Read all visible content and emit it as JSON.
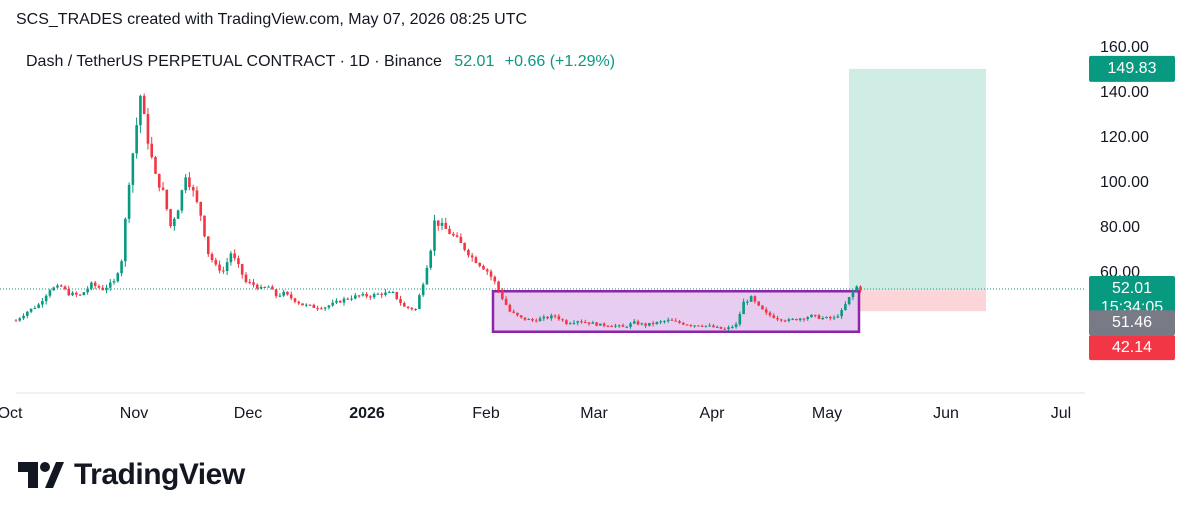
{
  "header": {
    "attribution": "SCS_TRADES created with TradingView.com, May 07, 2026 08:25 UTC"
  },
  "legend": {
    "symbol": "Dash / TetherUS PERPETUAL CONTRACT · 1D · Binance",
    "last_price": "52.01",
    "change": "+0.66 (+1.29%)"
  },
  "price_tags": {
    "target": "149.83",
    "last": "52.01",
    "countdown": "15:34:05",
    "entry": "51.46",
    "stop": "42.14"
  },
  "colors": {
    "up": "#089981",
    "down": "#f23645",
    "target_zone": "#cfece5",
    "stop_zone": "#fbd5d8",
    "range_box_stroke": "#8e24aa",
    "range_box_fill": "#e7cdf0",
    "entry_tag": "#787b86"
  },
  "logo": {
    "wordmark": "TradingView"
  },
  "chart_data": {
    "type": "candlestick",
    "title": "Dash / TetherUS PERPETUAL CONTRACT · 1D · Binance",
    "y_ticks": [
      "160.00",
      "140.00",
      "120.00",
      "100.00",
      "80.00",
      "60.00"
    ],
    "x_ticks": [
      {
        "label": "Oct",
        "bold": false
      },
      {
        "label": "Nov",
        "bold": false
      },
      {
        "label": "Dec",
        "bold": false
      },
      {
        "label": "2026",
        "bold": true
      },
      {
        "label": "Feb",
        "bold": false
      },
      {
        "label": "Mar",
        "bold": false
      },
      {
        "label": "Apr",
        "bold": false
      },
      {
        "label": "May",
        "bold": false
      },
      {
        "label": "Jun",
        "bold": false
      },
      {
        "label": "Jul",
        "bold": false
      }
    ],
    "ylim": [
      18,
      160
    ],
    "last_price": 52.01,
    "entry": 51.46,
    "target": 149.83,
    "stop": 42.14,
    "range_box": {
      "price_top": 51,
      "price_bottom": 33
    },
    "price_path": [
      [
        0,
        38
      ],
      [
        3,
        42
      ],
      [
        6,
        45
      ],
      [
        9,
        52
      ],
      [
        12,
        53
      ],
      [
        14,
        50
      ],
      [
        17,
        49
      ],
      [
        20,
        54
      ],
      [
        23,
        52
      ],
      [
        26,
        55
      ],
      [
        28,
        65
      ],
      [
        30,
        100
      ],
      [
        32,
        125
      ],
      [
        33,
        138
      ],
      [
        35,
        118
      ],
      [
        37,
        102
      ],
      [
        39,
        95
      ],
      [
        41,
        80
      ],
      [
        43,
        88
      ],
      [
        45,
        103
      ],
      [
        47,
        95
      ],
      [
        49,
        85
      ],
      [
        51,
        68
      ],
      [
        53,
        62
      ],
      [
        55,
        60
      ],
      [
        57,
        68
      ],
      [
        59,
        62
      ],
      [
        61,
        55
      ],
      [
        63,
        54
      ],
      [
        65,
        52
      ],
      [
        67,
        53
      ],
      [
        69,
        49
      ],
      [
        71,
        50
      ],
      [
        73,
        48
      ],
      [
        76,
        45
      ],
      [
        79,
        44
      ],
      [
        82,
        44
      ],
      [
        85,
        46
      ],
      [
        88,
        48
      ],
      [
        91,
        49
      ],
      [
        94,
        49
      ],
      [
        97,
        50
      ],
      [
        100,
        50
      ],
      [
        103,
        44
      ],
      [
        106,
        43
      ],
      [
        108,
        55
      ],
      [
        110,
        70
      ],
      [
        111,
        82
      ],
      [
        113,
        80
      ],
      [
        115,
        77
      ],
      [
        117,
        74
      ],
      [
        119,
        70
      ],
      [
        121,
        66
      ],
      [
        123,
        63
      ],
      [
        125,
        60
      ],
      [
        127,
        55
      ],
      [
        129,
        48
      ],
      [
        131,
        42
      ],
      [
        134,
        39
      ],
      [
        137,
        38
      ],
      [
        140,
        39
      ],
      [
        143,
        40
      ],
      [
        146,
        37
      ],
      [
        149,
        38
      ],
      [
        152,
        37
      ],
      [
        155,
        36
      ],
      [
        158,
        36
      ],
      [
        161,
        35
      ],
      [
        164,
        37
      ],
      [
        167,
        36
      ],
      [
        170,
        37
      ],
      [
        173,
        38
      ],
      [
        176,
        37
      ],
      [
        179,
        36
      ],
      [
        182,
        36
      ],
      [
        185,
        35
      ],
      [
        188,
        34
      ],
      [
        191,
        36
      ],
      [
        193,
        46
      ],
      [
        195,
        48
      ],
      [
        197,
        44
      ],
      [
        199,
        41
      ],
      [
        202,
        39
      ],
      [
        205,
        38
      ],
      [
        208,
        39
      ],
      [
        211,
        40
      ],
      [
        214,
        39
      ],
      [
        217,
        39
      ],
      [
        219,
        42
      ],
      [
        221,
        48
      ],
      [
        222,
        51
      ],
      [
        223,
        53
      ],
      [
        224,
        52
      ]
    ]
  }
}
